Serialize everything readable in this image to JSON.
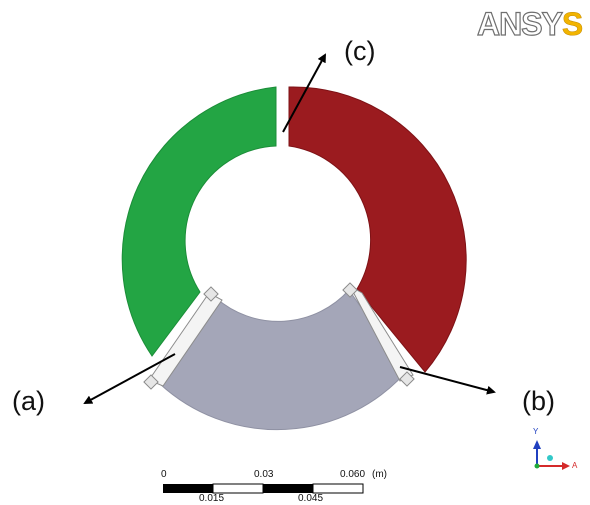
{
  "logo": {
    "part1": "ANSY",
    "part2": "S"
  },
  "callouts": {
    "a": "(a)",
    "b": "(b)",
    "c": "(c)"
  },
  "scale_bar": {
    "top_ticks": [
      "0",
      "0.03",
      "0.060"
    ],
    "unit": "(m)",
    "bottom_ticks": [
      "0.015",
      "0.045"
    ]
  },
  "triad": {
    "x_axis": "A",
    "y_axis": "Y"
  },
  "colors": {
    "green_region": "#23a544",
    "red_region": "#9b1b1f",
    "gray_region": "#a4a6b8",
    "arrow": "#000000"
  }
}
